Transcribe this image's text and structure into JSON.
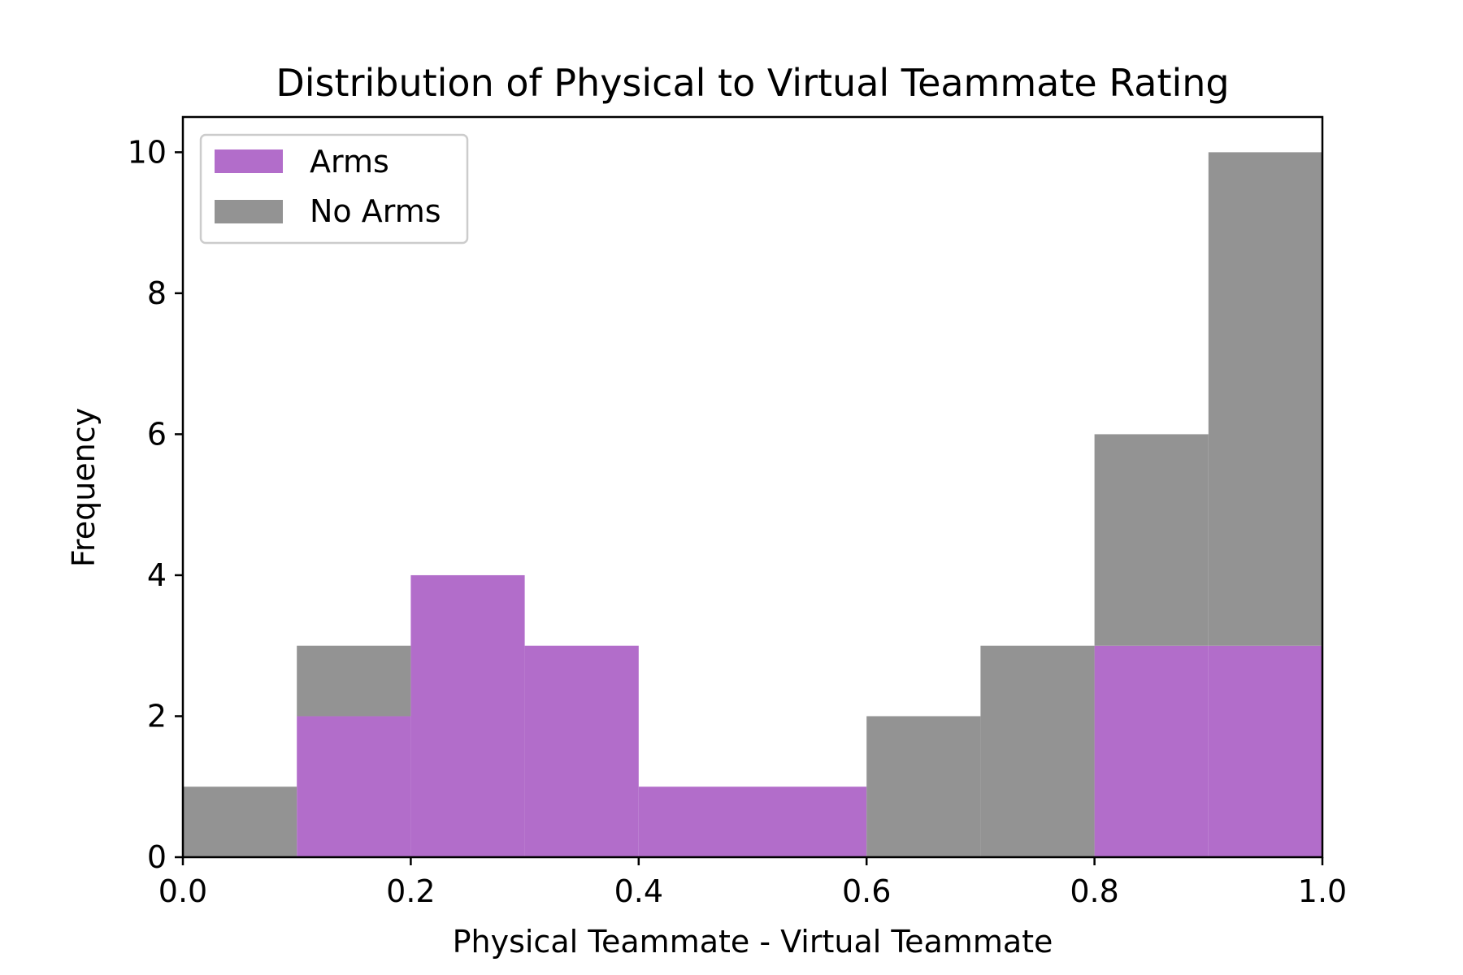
{
  "chart_data": {
    "type": "bar",
    "title": "Distribution of Physical to Virtual Teammate Rating",
    "xlabel": "Physical Teammate - Virtual Teammate",
    "ylabel": "Frequency",
    "xlim": [
      0.0,
      1.0
    ],
    "ylim": [
      0,
      10.5
    ],
    "x_ticks": [
      "0.0",
      "0.2",
      "0.4",
      "0.6",
      "0.8",
      "1.0"
    ],
    "y_ticks": [
      "0",
      "2",
      "4",
      "6",
      "8",
      "10"
    ],
    "bin_edges": [
      0.0,
      0.1,
      0.2,
      0.3,
      0.4,
      0.5,
      0.6,
      0.7,
      0.8,
      0.9,
      1.0
    ],
    "stacked": true,
    "grid": false,
    "legend_position": "top-left",
    "series": [
      {
        "name": "Arms",
        "color": "#b26dca",
        "values": [
          0,
          2,
          4,
          3,
          1,
          1,
          0,
          0,
          3,
          3
        ]
      },
      {
        "name": "No Arms",
        "color": "#939393",
        "values": [
          1,
          1,
          0,
          0,
          0,
          0,
          2,
          3,
          3,
          7
        ]
      }
    ]
  }
}
